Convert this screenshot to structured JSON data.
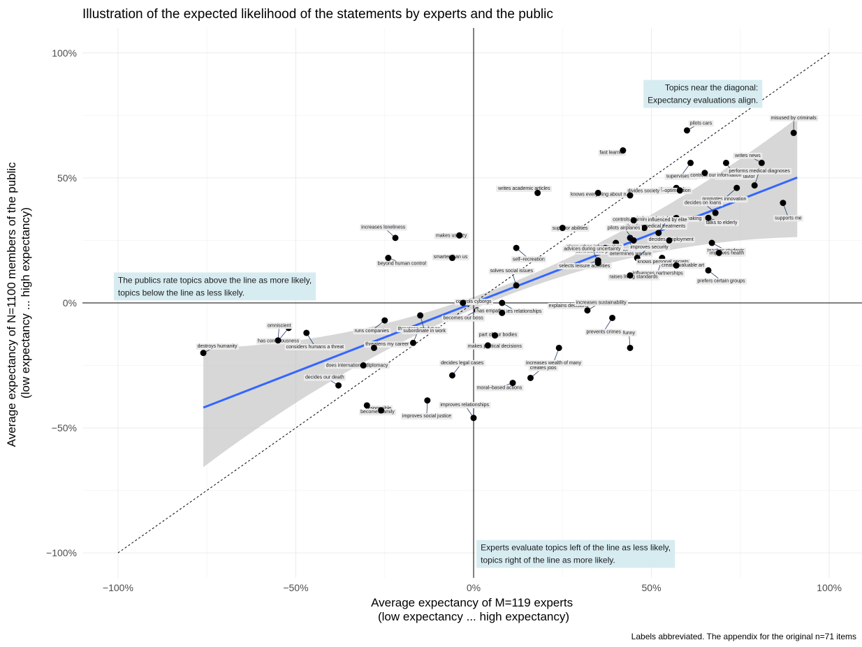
{
  "chart_data": {
    "type": "scatter",
    "title": "Illustration of the expected likelihood of the statements by experts and the public",
    "xlabel": [
      "Average expectancy of M=119 experts",
      "(low expectancy ... high expectancy)"
    ],
    "ylabel": [
      "Average expectancy of N=1100 members of the public",
      "(low expectancy ... high expectancy)"
    ],
    "caption": "Labels abbreviated. The appendix for the original n=71 items",
    "xlim": [
      -110,
      110
    ],
    "ylim": [
      -110,
      110
    ],
    "x_ticks": [
      -100,
      -50,
      0,
      50,
      100
    ],
    "x_tick_labels": [
      "−100%",
      "−50%",
      "0%",
      "50%",
      "100%"
    ],
    "y_ticks": [
      -100,
      -50,
      0,
      50,
      100
    ],
    "y_tick_labels": [
      "−100%",
      "−50%",
      "0%",
      "50%",
      "100%"
    ],
    "grid": true,
    "reference_lines": [
      "x = 0",
      "y = 0",
      "y = x (dashed)"
    ],
    "regression": {
      "intercept": 0,
      "slope": 0.551,
      "x_range": [
        -76,
        91
      ],
      "color": "#3366ff",
      "band_color": "#bdbdbd"
    },
    "point_color": "#000000",
    "annotations": [
      {
        "lines": [
          "Topics near the diagonal:",
          "Expectancy evaluations align."
        ],
        "x": 80,
        "y": 85,
        "anchor": "end"
      },
      {
        "lines": [
          "The publics rate topics above the line as more likely,",
          "topics below the line as less likely."
        ],
        "x": -100,
        "y": 8,
        "anchor": "start"
      },
      {
        "lines": [
          "Experts evaluate topics left of the line as less likely,",
          "topics right of the line as more likely."
        ],
        "x": 2,
        "y": -99,
        "anchor": "start"
      }
    ],
    "points": [
      {
        "label": "destroys humanity",
        "x": -76,
        "y": -20
      },
      {
        "label": "has consciousness",
        "x": -52,
        "y": -10
      },
      {
        "label": "omniscient",
        "x": -55,
        "y": -15
      },
      {
        "label": "considers humans a threat",
        "x": -47,
        "y": -12
      },
      {
        "label": "decides our death",
        "x": -38,
        "y": -33
      },
      {
        "label": "responsible",
        "x": -30,
        "y": -41
      },
      {
        "label": "becomes family",
        "x": -26,
        "y": -43
      },
      {
        "label": "does international diplomacy",
        "x": -31,
        "y": -25
      },
      {
        "label": "threatens my career",
        "x": -28,
        "y": -18
      },
      {
        "label": "runs companies",
        "x": -25,
        "y": -7
      },
      {
        "label": "threatens my future",
        "x": -17,
        "y": -16
      },
      {
        "label": "subordinate in work",
        "x": -15,
        "y": -5
      },
      {
        "label": "increases loneliness",
        "x": -22,
        "y": 26
      },
      {
        "label": "beyond human control",
        "x": -24,
        "y": 18
      },
      {
        "label": "makes us lazy",
        "x": -4,
        "y": 27
      },
      {
        "label": "smarter than us",
        "x": -6,
        "y": 18
      },
      {
        "label": "controls cyborgs",
        "x": -3,
        "y": 0
      },
      {
        "label": "becomes our boss",
        "x": 1,
        "y": -3
      },
      {
        "label": "decides legal cases",
        "x": -6,
        "y": -29
      },
      {
        "label": "improves social justice",
        "x": -13,
        "y": -39
      },
      {
        "label": "improves relationships",
        "x": 0,
        "y": -46
      },
      {
        "label": "decreases relationships",
        "x": 8,
        "y": 0
      },
      {
        "label": "has empathy",
        "x": 8,
        "y": -4
      },
      {
        "label": "part of our bodies",
        "x": 6,
        "y": -13
      },
      {
        "label": "makes political decisions",
        "x": 4,
        "y": -17
      },
      {
        "label": "moral–based actions",
        "x": 11,
        "y": -32
      },
      {
        "label": "creates jobs",
        "x": 16,
        "y": -30
      },
      {
        "label": "increases wealth of many",
        "x": 24,
        "y": -18
      },
      {
        "label": "solves social issues",
        "x": 12,
        "y": 7
      },
      {
        "label": "self–recreation",
        "x": 12,
        "y": 22
      },
      {
        "label": "writes academic articles",
        "x": 18,
        "y": 44
      },
      {
        "label": "superior abilities",
        "x": 25,
        "y": 30
      },
      {
        "label": "knows everything about me",
        "x": 35,
        "y": 44
      },
      {
        "label": "fast learner",
        "x": 42,
        "y": 61
      },
      {
        "label": "pilots cars",
        "x": 60,
        "y": 69
      },
      {
        "label": "supervises us",
        "x": 61,
        "y": 56
      },
      {
        "label": "misused by criminals",
        "x": 90,
        "y": 68
      },
      {
        "label": "monitors behavior",
        "x": 71,
        "y": 56
      },
      {
        "label": "writes news",
        "x": 81,
        "y": 56
      },
      {
        "label": "controls our information",
        "x": 65,
        "y": 52
      },
      {
        "label": "destroys jobs",
        "x": 57,
        "y": 46
      },
      {
        "label": "self–optimization",
        "x": 58,
        "y": 45
      },
      {
        "label": "divides society",
        "x": 44,
        "y": 43
      },
      {
        "label": "promotes innovation",
        "x": 74,
        "y": 46
      },
      {
        "label": "performs medical diagnoses",
        "x": 79,
        "y": 47
      },
      {
        "label": "supports me",
        "x": 87,
        "y": 40
      },
      {
        "label": "decides on loans",
        "x": 68,
        "y": 36
      },
      {
        "label": "talks to elderly",
        "x": 66,
        "y": 34
      },
      {
        "label": "independent decision–making",
        "x": 57,
        "y": 34
      },
      {
        "label": "controls learning",
        "x": 45,
        "y": 33
      },
      {
        "label": "decides medical treatments",
        "x": 48,
        "y": 30
      },
      {
        "label": "controls food production",
        "x": 40,
        "y": 24
      },
      {
        "label": "influenced by elite",
        "x": 52,
        "y": 28
      },
      {
        "label": "determines warfare",
        "x": 44,
        "y": 26
      },
      {
        "label": "pilots airplanes",
        "x": 45,
        "y": 25
      },
      {
        "label": "teaches students",
        "x": 67,
        "y": 24
      },
      {
        "label": "plans urban infrastructure",
        "x": 37,
        "y": 22
      },
      {
        "label": "decides employment",
        "x": 55,
        "y": 25
      },
      {
        "label": "improves health",
        "x": 69,
        "y": 20
      },
      {
        "label": "selects leisure activities",
        "x": 35,
        "y": 17
      },
      {
        "label": "improves security",
        "x": 46,
        "y": 18
      },
      {
        "label": "influences partnerships",
        "x": 53,
        "y": 18
      },
      {
        "label": "advices during uncertainty",
        "x": 35,
        "y": 16
      },
      {
        "label": "prefers certain groups",
        "x": 66,
        "y": 13
      },
      {
        "label": "knows personal secrets",
        "x": 57,
        "y": 15
      },
      {
        "label": "creates valuable art",
        "x": 57,
        "y": 15
      },
      {
        "label": "raises living standards",
        "x": 44,
        "y": 11
      },
      {
        "label": "explains decisions",
        "x": 30,
        "y": 0
      },
      {
        "label": "increases sustainability",
        "x": 32,
        "y": -3
      },
      {
        "label": "prevents crimes",
        "x": 39,
        "y": -6
      },
      {
        "label": "funny",
        "x": 44,
        "y": -18
      }
    ]
  }
}
